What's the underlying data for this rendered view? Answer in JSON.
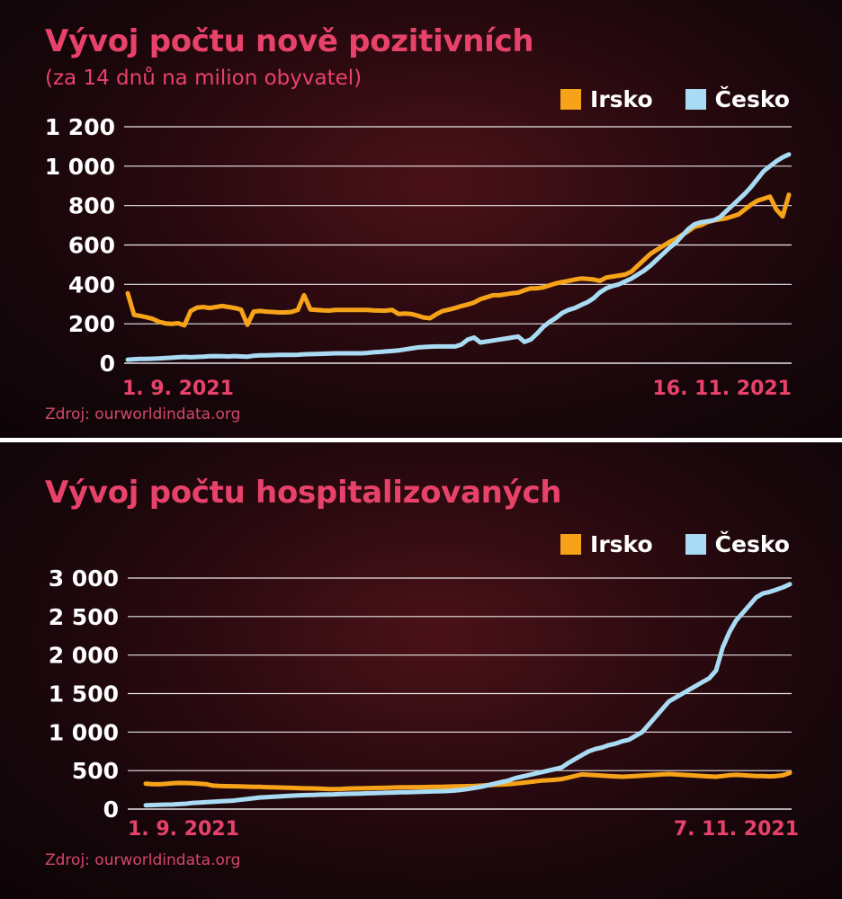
{
  "colors": {
    "irsko": "#f6a31a",
    "cesko": "#a9dcf4",
    "accent": "#e8426a",
    "grid": "#ffffff"
  },
  "legend": {
    "irsko": "Irsko",
    "cesko": "Česko"
  },
  "chart_data": [
    {
      "type": "line",
      "title": "Vývoj počtu nově pozitivních",
      "subtitle": "(za 14 dnů na milion obyvatel)",
      "x_start_label": "1. 9. 2021",
      "x_end_label": "16. 11. 2021",
      "source": "Zdroj: ourworldindata.org",
      "ylim": [
        0,
        1200
      ],
      "yticks": [
        0,
        200,
        400,
        600,
        800,
        1000,
        1200
      ],
      "ytick_labels": [
        "0",
        "200",
        "400",
        "600",
        "800",
        "1 000",
        "1 200"
      ],
      "grid": true,
      "legend_position": "top-right",
      "series": [
        {
          "name": "Irsko",
          "values": [
            355,
            245,
            240,
            233,
            225,
            210,
            202,
            200,
            203,
            192,
            265,
            282,
            285,
            280,
            285,
            290,
            285,
            280,
            272,
            195,
            262,
            265,
            262,
            260,
            258,
            258,
            260,
            270,
            345,
            273,
            270,
            268,
            267,
            270,
            270,
            270,
            270,
            270,
            270,
            268,
            267,
            267,
            270,
            250,
            252,
            250,
            242,
            232,
            228,
            248,
            265,
            272,
            280,
            290,
            298,
            308,
            325,
            335,
            345,
            345,
            350,
            355,
            358,
            370,
            380,
            380,
            385,
            395,
            405,
            412,
            418,
            425,
            430,
            428,
            425,
            418,
            435,
            440,
            445,
            450,
            465,
            495,
            525,
            555,
            575,
            595,
            615,
            630,
            650,
            670,
            692,
            700,
            715,
            725,
            730,
            735,
            745,
            755,
            780,
            805,
            825,
            835,
            845,
            780,
            745,
            855
          ]
        },
        {
          "name": "Česko",
          "values": [
            18,
            20,
            22,
            22,
            23,
            24,
            26,
            28,
            30,
            32,
            30,
            32,
            33,
            35,
            36,
            35,
            34,
            36,
            34,
            33,
            38,
            40,
            40,
            41,
            42,
            42,
            42,
            43,
            45,
            46,
            47,
            48,
            49,
            50,
            50,
            50,
            50,
            50,
            52,
            55,
            57,
            60,
            62,
            65,
            70,
            75,
            80,
            82,
            84,
            85,
            85,
            85,
            85,
            95,
            120,
            130,
            105,
            110,
            115,
            120,
            125,
            130,
            135,
            108,
            120,
            150,
            185,
            210,
            230,
            255,
            270,
            280,
            295,
            310,
            330,
            360,
            380,
            392,
            400,
            415,
            430,
            450,
            470,
            495,
            525,
            555,
            585,
            610,
            645,
            680,
            705,
            715,
            720,
            725,
            740,
            770,
            800,
            830,
            860,
            895,
            935,
            975,
            1000,
            1025,
            1045,
            1060
          ]
        }
      ]
    },
    {
      "type": "line",
      "title": "Vývoj počtu hospitalizovaných",
      "x_start_label": "1. 9. 2021",
      "x_end_label": "7. 11. 2021",
      "source": "Zdroj: ourworldindata.org",
      "ylim": [
        0,
        3000
      ],
      "yticks": [
        0,
        500,
        1000,
        1500,
        2000,
        2500,
        3000
      ],
      "ytick_labels": [
        "0",
        "500",
        "1 000",
        "1 500",
        "2 000",
        "2 500",
        "3 000"
      ],
      "grid": true,
      "legend_position": "top-right",
      "series": [
        {
          "name": "Irsko",
          "values": [
            330,
            325,
            322,
            328,
            335,
            340,
            338,
            335,
            330,
            325,
            305,
            300,
            298,
            296,
            294,
            292,
            290,
            288,
            285,
            282,
            280,
            278,
            275,
            272,
            270,
            268,
            265,
            262,
            260,
            262,
            265,
            268,
            270,
            272,
            274,
            276,
            278,
            280,
            282,
            284,
            285,
            285,
            287,
            288,
            290,
            292,
            294,
            296,
            298,
            300,
            305,
            310,
            315,
            320,
            325,
            330,
            340,
            350,
            360,
            370,
            375,
            380,
            390,
            410,
            430,
            450,
            445,
            440,
            435,
            430,
            425,
            420,
            425,
            430,
            435,
            440,
            445,
            450,
            455,
            450,
            445,
            440,
            435,
            430,
            425,
            420,
            430,
            440,
            445,
            440,
            435,
            430,
            430,
            425,
            430,
            440,
            470
          ]
        },
        {
          "name": "Česko",
          "values": [
            50,
            52,
            55,
            58,
            60,
            65,
            70,
            80,
            85,
            90,
            95,
            100,
            105,
            110,
            120,
            130,
            140,
            150,
            155,
            160,
            165,
            170,
            175,
            180,
            182,
            185,
            188,
            190,
            192,
            195,
            198,
            200,
            202,
            205,
            208,
            210,
            212,
            215,
            218,
            220,
            222,
            225,
            228,
            230,
            232,
            235,
            240,
            250,
            260,
            275,
            290,
            310,
            330,
            350,
            370,
            400,
            420,
            440,
            460,
            480,
            500,
            520,
            540,
            600,
            650,
            700,
            750,
            780,
            800,
            830,
            850,
            880,
            900,
            950,
            1000,
            1100,
            1200,
            1300,
            1400,
            1450,
            1500,
            1550,
            1600,
            1650,
            1700,
            1800,
            2100,
            2300,
            2450,
            2550,
            2650,
            2750,
            2800,
            2820,
            2850,
            2880,
            2920
          ]
        }
      ]
    }
  ]
}
